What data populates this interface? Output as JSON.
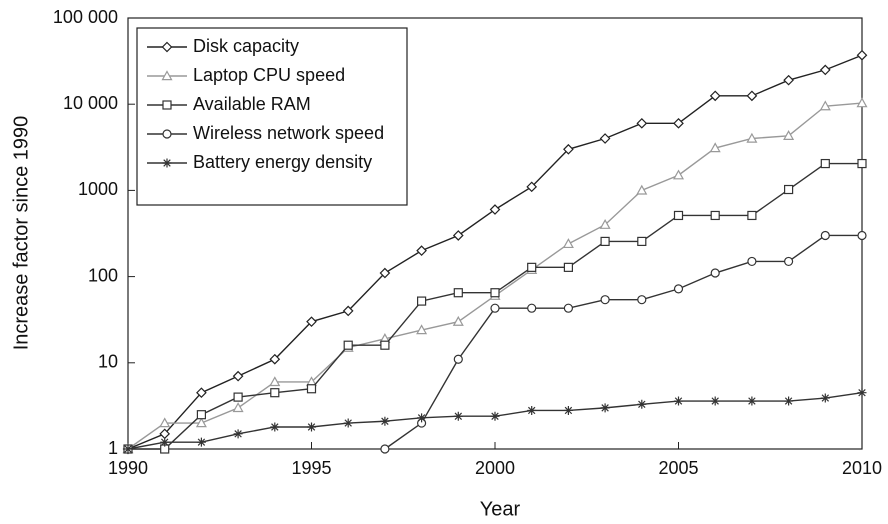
{
  "chart_data": {
    "type": "line",
    "xlabel": "Year",
    "ylabel": "Increase factor since 1990",
    "x": [
      1990,
      1991,
      1992,
      1993,
      1994,
      1995,
      1996,
      1997,
      1998,
      1999,
      2000,
      2001,
      2002,
      2003,
      2004,
      2005,
      2006,
      2007,
      2008,
      2009,
      2010
    ],
    "xlim": [
      1990,
      2010
    ],
    "xticks": [
      1990,
      1995,
      2000,
      2005,
      2010
    ],
    "ylim": [
      1,
      100000
    ],
    "ylog": true,
    "yticks": [
      1,
      10,
      100,
      1000,
      {
        "value": 10000,
        "label": "10 000"
      },
      {
        "value": 100000,
        "label": "100 000"
      }
    ],
    "legend": "upper left",
    "series": [
      {
        "name": "Disk capacity",
        "color": "#222222",
        "marker": "diamond",
        "values": [
          1,
          1.5,
          4.5,
          7,
          11,
          30,
          40,
          110,
          200,
          300,
          600,
          1100,
          3000,
          4000,
          6000,
          6000,
          12500,
          12500,
          19000,
          25000,
          37000
        ]
      },
      {
        "name": "Laptop CPU speed",
        "color": "#999999",
        "marker": "triangle",
        "values": [
          1,
          2,
          2,
          3,
          6,
          6,
          15,
          19,
          24,
          30,
          60,
          120,
          240,
          400,
          1000,
          1500,
          3100,
          4000,
          4300,
          9500,
          10300
        ]
      },
      {
        "name": "Available RAM",
        "color": "#333333",
        "marker": "square",
        "values": [
          1,
          1,
          2.5,
          4,
          4.5,
          5,
          16,
          16,
          52,
          65,
          65,
          128,
          128,
          256,
          256,
          512,
          512,
          512,
          1024,
          2048,
          2048
        ]
      },
      {
        "name": "Wireless network speed",
        "color": "#333333",
        "marker": "circle",
        "values": [
          null,
          null,
          null,
          null,
          null,
          null,
          null,
          1,
          2,
          11,
          43,
          43,
          43,
          54,
          54,
          72,
          110,
          150,
          150,
          300,
          300
        ]
      },
      {
        "name": "Battery energy density",
        "color": "#333333",
        "marker": "star",
        "values": [
          1,
          1.2,
          1.2,
          1.5,
          1.8,
          1.8,
          2,
          2.1,
          2.3,
          2.4,
          2.4,
          2.8,
          2.8,
          3,
          3.3,
          3.6,
          3.6,
          3.6,
          3.6,
          3.9,
          4.5
        ]
      }
    ]
  }
}
